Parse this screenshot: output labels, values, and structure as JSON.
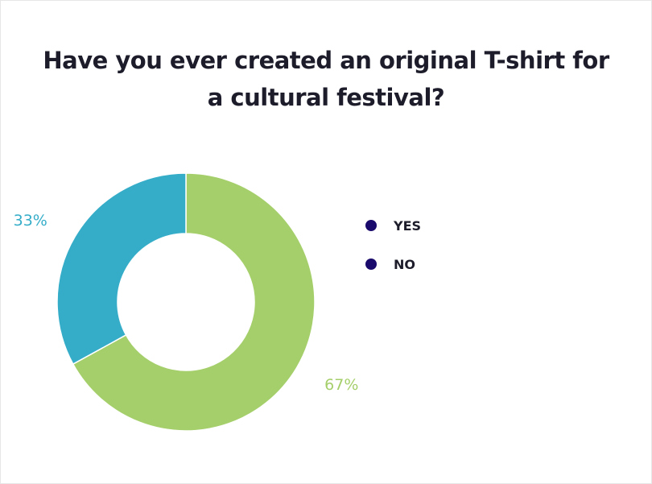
{
  "chart_data": {
    "type": "pie",
    "donut": true,
    "title_lines": [
      "Have you ever created an original T-shirt for",
      "a cultural festival?"
    ],
    "categories": [
      "YES",
      "NO"
    ],
    "values": [
      67,
      33
    ],
    "labels": [
      "67%",
      "33%"
    ],
    "slice_colors": [
      "#a5cf6a",
      "#35adc9"
    ],
    "legend_dot_color": "#1a0a6b",
    "legend_placement": "right"
  }
}
